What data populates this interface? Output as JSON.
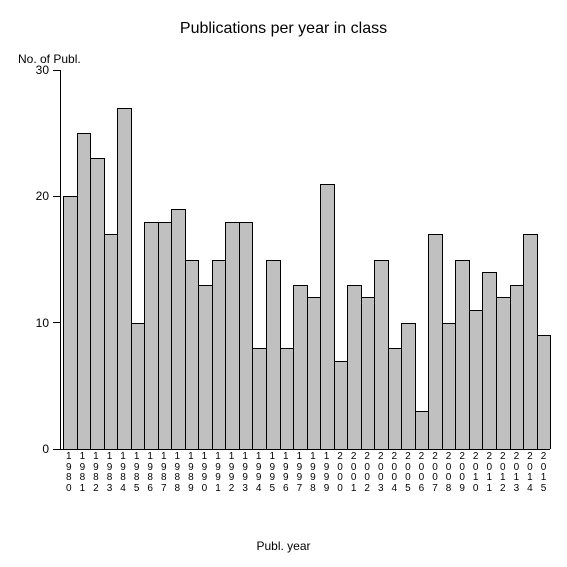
{
  "chart": {
    "type": "bar",
    "title": "Publications per year in class",
    "title_fontsize": 16,
    "ylabel": "No. of Publ.",
    "xlabel": "Publ. year",
    "label_fontsize": 12,
    "ylim": [
      0,
      30
    ],
    "yticks": [
      0,
      10,
      20,
      30
    ],
    "background_color": "#ffffff",
    "axis_color": "#000000",
    "bar_fill": "#c0c0c0",
    "bar_border": "#000000",
    "tick_fontsize": 10,
    "categories": [
      "1980",
      "1981",
      "1982",
      "1983",
      "1984",
      "1985",
      "1986",
      "1987",
      "1988",
      "1989",
      "1990",
      "1991",
      "1992",
      "1993",
      "1994",
      "1995",
      "1996",
      "1997",
      "1998",
      "1999",
      "2000",
      "2001",
      "2002",
      "2003",
      "2004",
      "2005",
      "2006",
      "2007",
      "2008",
      "2009",
      "2010",
      "2011",
      "2012",
      "2013",
      "2014",
      "2015"
    ],
    "values": [
      20,
      25,
      23,
      17,
      27,
      10,
      18,
      18,
      19,
      15,
      13,
      15,
      18,
      18,
      8,
      15,
      8,
      13,
      12,
      21,
      7,
      13,
      12,
      15,
      8,
      10,
      3,
      17,
      10,
      15,
      11,
      14,
      12,
      13,
      17,
      9
    ]
  }
}
